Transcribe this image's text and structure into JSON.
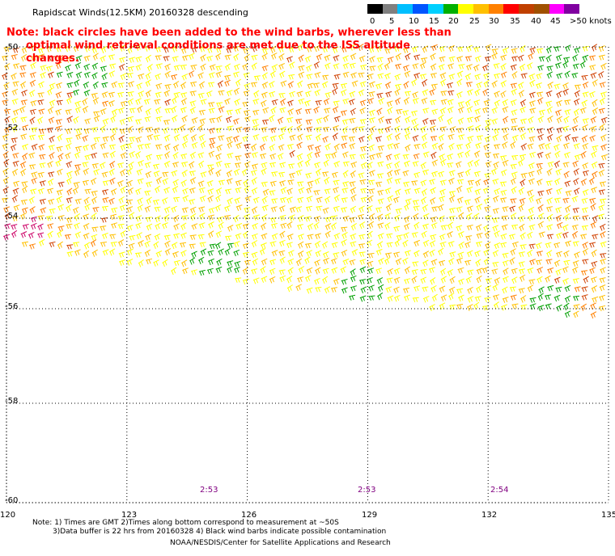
{
  "title": "Rapidscat Winds(12.5KM) 20160328 descending",
  "note": {
    "line1": "Note: black circles have been added to the wind barbs, wherever less than",
    "line2": "optimal wind retrieval conditions are met due to the ISS altitude changes."
  },
  "legend": {
    "colors": [
      "#000000",
      "#808080",
      "#00bfff",
      "#0055ff",
      "#00d0ff",
      "#00b000",
      "#ffff00",
      "#ffc000",
      "#ff8000",
      "#ff0000",
      "#c04000",
      "#a05000",
      "#ff00ff",
      "#8000a0"
    ],
    "labels": [
      "0",
      "5",
      "10",
      "15",
      "20",
      "25",
      "30",
      "35",
      "40",
      "45",
      ">50 knots"
    ]
  },
  "lon_labels": [
    "120",
    "123",
    "126",
    "129",
    "132",
    "135"
  ],
  "lat_labels": [
    "-50",
    "-52",
    "-54",
    "-56",
    "-58",
    "-60"
  ],
  "pass_times": [
    "2:53",
    "2:53",
    "2:54"
  ],
  "footer": {
    "line1": "Note: 1) Times are GMT 2)Times along bottom correspond to measurement at ~50S",
    "line2": "3)Data buffer is 22 hrs from 20160328 4) Black wind barbs indicate possible contamination",
    "line3": "NOAA/NESDIS/Center for Satellite Applications and Research"
  },
  "map_data": {
    "lon_range": [
      120,
      135
    ],
    "lat_range": [
      -60,
      -50
    ],
    "swath_edge_note": "data present north of swath edge",
    "green_clusters": [
      {
        "lon": 121.8,
        "lat": -50.7
      },
      {
        "lon": 125.2,
        "lat": -54.9
      },
      {
        "lon": 128.8,
        "lat": -55.5
      },
      {
        "lon": 133.5,
        "lat": -55.8
      },
      {
        "lon": 133.8,
        "lat": -50.3
      }
    ]
  }
}
